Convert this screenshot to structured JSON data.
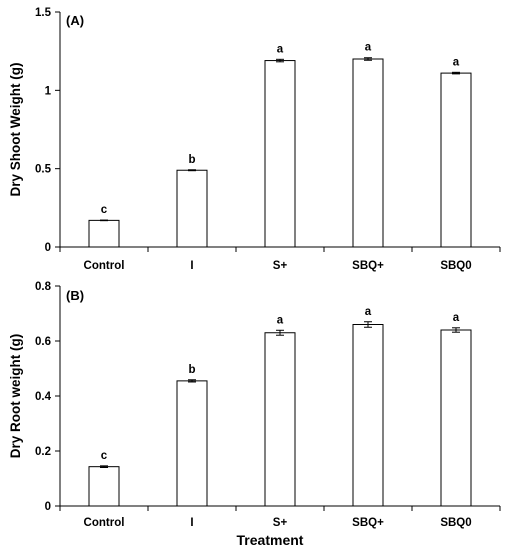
{
  "chart_data": [
    {
      "type": "bar",
      "panel_label": "(A)",
      "ylabel": "Dry Shoot Weight (g)",
      "xlabel": "",
      "categories": [
        "Control",
        "I",
        "S+",
        "SBQ+",
        "SBQ0"
      ],
      "values": [
        0.17,
        0.49,
        1.19,
        1.2,
        1.11
      ],
      "errors": [
        0.002,
        0.003,
        0.008,
        0.008,
        0.005
      ],
      "sig_letters": [
        "c",
        "b",
        "a",
        "a",
        "a"
      ],
      "ylim": [
        0,
        1.5
      ],
      "yticks": [
        0,
        0.5,
        1,
        1.5
      ],
      "ytick_labels": [
        "0",
        "0.5",
        "1",
        "1.5"
      ]
    },
    {
      "type": "bar",
      "panel_label": "(B)",
      "ylabel": "Dry Root weight (g)",
      "xlabel": "Treatment",
      "categories": [
        "Control",
        "I",
        "S+",
        "SBQ+",
        "SBQ0"
      ],
      "values": [
        0.143,
        0.455,
        0.63,
        0.66,
        0.64
      ],
      "errors": [
        0.003,
        0.004,
        0.009,
        0.01,
        0.008
      ],
      "sig_letters": [
        "c",
        "b",
        "a",
        "a",
        "a"
      ],
      "ylim": [
        0,
        0.8
      ],
      "yticks": [
        0,
        0.2,
        0.4,
        0.6,
        0.8
      ],
      "ytick_labels": [
        "0",
        "0.2",
        "0.4",
        "0.6",
        "0.8"
      ]
    }
  ],
  "colors": {
    "bar_fill": "#ffffff",
    "bar_stroke": "#000000",
    "axis": "#000000"
  }
}
